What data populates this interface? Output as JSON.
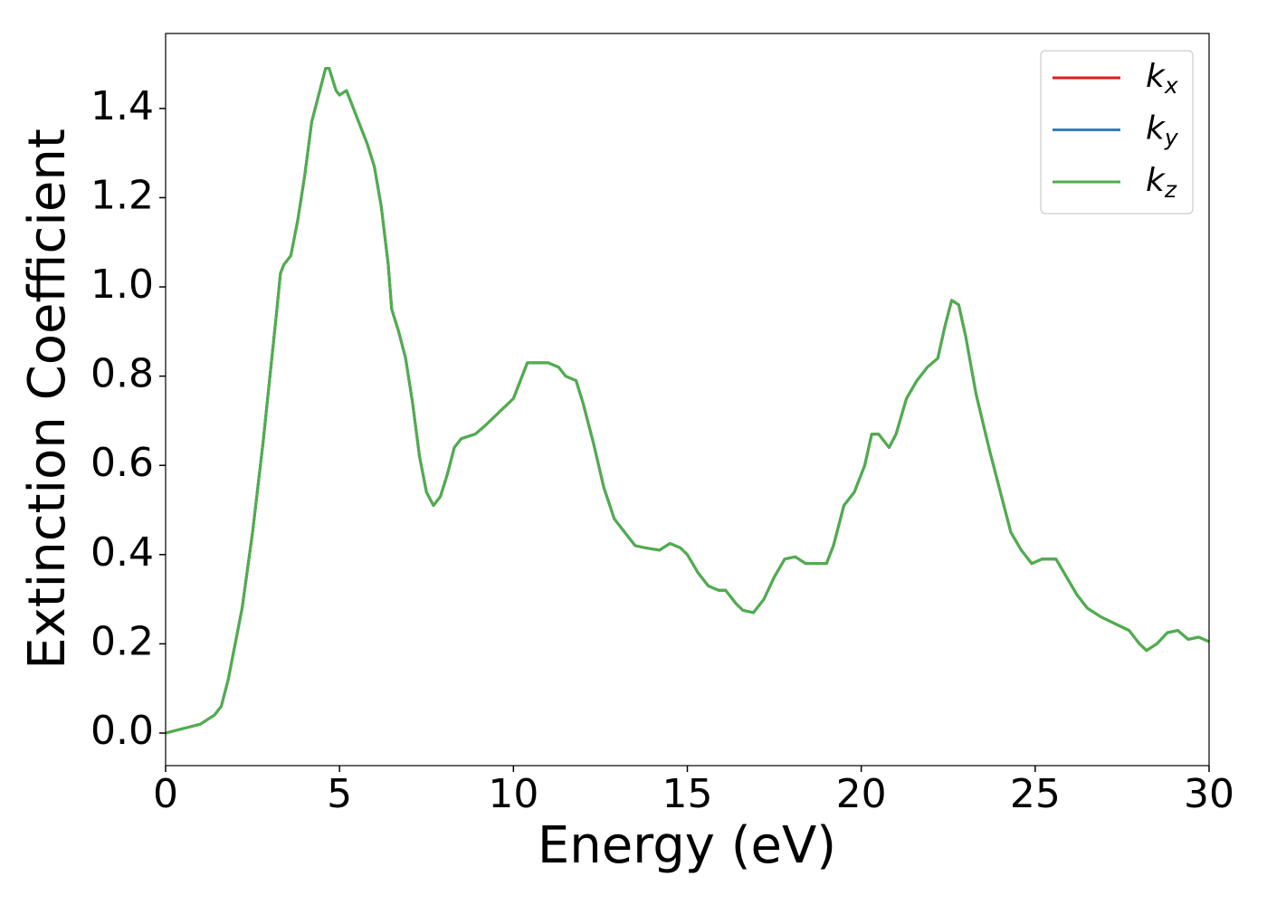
{
  "chart_data": {
    "type": "line",
    "xlabel": "Energy (eV)",
    "ylabel": "Extinction Coefficient",
    "xlim": [
      0,
      30
    ],
    "ylim": [
      -0.073,
      1.568
    ],
    "xticks": [
      0,
      5,
      10,
      15,
      20,
      25,
      30
    ],
    "yticks": [
      {
        "value": 0,
        "label": "0.0"
      },
      0.2,
      0.4,
      0.6,
      0.8,
      {
        "value": 1,
        "label": "1.0"
      },
      1.2,
      1.4
    ],
    "legend": "upper right",
    "x": [
      0,
      0.5,
      1.0,
      1.4,
      1.6,
      1.8,
      2.0,
      2.2,
      2.5,
      2.8,
      3.0,
      3.2,
      3.3,
      3.4,
      3.6,
      3.8,
      4.0,
      4.2,
      4.4,
      4.6,
      4.7,
      4.9,
      5.0,
      5.2,
      5.4,
      5.6,
      5.8,
      6.0,
      6.2,
      6.4,
      6.5,
      6.7,
      6.9,
      7.1,
      7.3,
      7.5,
      7.7,
      7.9,
      8.1,
      8.3,
      8.5,
      8.9,
      9.2,
      9.6,
      10.0,
      10.2,
      10.4,
      10.6,
      11.0,
      11.3,
      11.5,
      11.8,
      12.0,
      12.3,
      12.6,
      12.9,
      13.2,
      13.5,
      13.8,
      14.2,
      14.5,
      14.8,
      15.0,
      15.3,
      15.6,
      15.9,
      16.1,
      16.4,
      16.6,
      16.9,
      17.2,
      17.5,
      17.8,
      18.1,
      18.4,
      18.7,
      19.0,
      19.2,
      19.5,
      19.8,
      20.1,
      20.3,
      20.5,
      20.8,
      21.0,
      21.3,
      21.6,
      21.9,
      22.2,
      22.4,
      22.6,
      22.8,
      23.0,
      23.3,
      23.7,
      24.0,
      24.3,
      24.6,
      24.9,
      25.2,
      25.6,
      25.9,
      26.2,
      26.5,
      26.9,
      27.3,
      27.7,
      28.0,
      28.2,
      28.5,
      28.8,
      29.1,
      29.4,
      29.7,
      30.0
    ],
    "series": [
      {
        "name": "kx",
        "color": "#e41a1c",
        "values": [
          0.0,
          0.01,
          0.02,
          0.04,
          0.06,
          0.12,
          0.2,
          0.28,
          0.45,
          0.65,
          0.8,
          0.95,
          1.03,
          1.05,
          1.07,
          1.15,
          1.25,
          1.37,
          1.43,
          1.49,
          1.49,
          1.44,
          1.43,
          1.44,
          1.4,
          1.36,
          1.32,
          1.27,
          1.18,
          1.05,
          0.95,
          0.9,
          0.84,
          0.74,
          0.62,
          0.54,
          0.51,
          0.53,
          0.58,
          0.64,
          0.66,
          0.67,
          0.69,
          0.72,
          0.75,
          0.79,
          0.83,
          0.83,
          0.83,
          0.82,
          0.8,
          0.79,
          0.74,
          0.65,
          0.55,
          0.48,
          0.45,
          0.42,
          0.415,
          0.41,
          0.425,
          0.415,
          0.4,
          0.36,
          0.33,
          0.32,
          0.32,
          0.29,
          0.275,
          0.27,
          0.3,
          0.35,
          0.39,
          0.395,
          0.38,
          0.38,
          0.38,
          0.42,
          0.51,
          0.54,
          0.6,
          0.67,
          0.67,
          0.64,
          0.67,
          0.75,
          0.79,
          0.82,
          0.84,
          0.91,
          0.97,
          0.96,
          0.89,
          0.76,
          0.63,
          0.54,
          0.45,
          0.41,
          0.38,
          0.39,
          0.39,
          0.35,
          0.31,
          0.28,
          0.26,
          0.245,
          0.23,
          0.2,
          0.185,
          0.2,
          0.225,
          0.23,
          0.21,
          0.215,
          0.205
        ]
      },
      {
        "name": "ky",
        "color": "#377eb8",
        "values": [
          0.0,
          0.01,
          0.02,
          0.04,
          0.06,
          0.12,
          0.2,
          0.28,
          0.45,
          0.65,
          0.8,
          0.95,
          1.03,
          1.05,
          1.07,
          1.15,
          1.25,
          1.37,
          1.43,
          1.49,
          1.49,
          1.44,
          1.43,
          1.44,
          1.4,
          1.36,
          1.32,
          1.27,
          1.18,
          1.05,
          0.95,
          0.9,
          0.84,
          0.74,
          0.62,
          0.54,
          0.51,
          0.53,
          0.58,
          0.64,
          0.66,
          0.67,
          0.69,
          0.72,
          0.75,
          0.79,
          0.83,
          0.83,
          0.83,
          0.82,
          0.8,
          0.79,
          0.74,
          0.65,
          0.55,
          0.48,
          0.45,
          0.42,
          0.415,
          0.41,
          0.425,
          0.415,
          0.4,
          0.36,
          0.33,
          0.32,
          0.32,
          0.29,
          0.275,
          0.27,
          0.3,
          0.35,
          0.39,
          0.395,
          0.38,
          0.38,
          0.38,
          0.42,
          0.51,
          0.54,
          0.6,
          0.67,
          0.67,
          0.64,
          0.67,
          0.75,
          0.79,
          0.82,
          0.84,
          0.91,
          0.97,
          0.96,
          0.89,
          0.76,
          0.63,
          0.54,
          0.45,
          0.41,
          0.38,
          0.39,
          0.39,
          0.35,
          0.31,
          0.28,
          0.26,
          0.245,
          0.23,
          0.2,
          0.185,
          0.2,
          0.225,
          0.23,
          0.21,
          0.215,
          0.205
        ]
      },
      {
        "name": "kz",
        "color": "#4daf4a",
        "values": [
          0.0,
          0.01,
          0.02,
          0.04,
          0.06,
          0.12,
          0.2,
          0.28,
          0.45,
          0.65,
          0.8,
          0.95,
          1.03,
          1.05,
          1.07,
          1.15,
          1.25,
          1.37,
          1.43,
          1.49,
          1.49,
          1.44,
          1.43,
          1.44,
          1.4,
          1.36,
          1.32,
          1.27,
          1.18,
          1.05,
          0.95,
          0.9,
          0.84,
          0.74,
          0.62,
          0.54,
          0.51,
          0.53,
          0.58,
          0.64,
          0.66,
          0.67,
          0.69,
          0.72,
          0.75,
          0.79,
          0.83,
          0.83,
          0.83,
          0.82,
          0.8,
          0.79,
          0.74,
          0.65,
          0.55,
          0.48,
          0.45,
          0.42,
          0.415,
          0.41,
          0.425,
          0.415,
          0.4,
          0.36,
          0.33,
          0.32,
          0.32,
          0.29,
          0.275,
          0.27,
          0.3,
          0.35,
          0.39,
          0.395,
          0.38,
          0.38,
          0.38,
          0.42,
          0.51,
          0.54,
          0.6,
          0.67,
          0.67,
          0.64,
          0.67,
          0.75,
          0.79,
          0.82,
          0.84,
          0.91,
          0.97,
          0.96,
          0.89,
          0.76,
          0.63,
          0.54,
          0.45,
          0.41,
          0.38,
          0.39,
          0.39,
          0.35,
          0.31,
          0.28,
          0.26,
          0.245,
          0.23,
          0.2,
          0.185,
          0.2,
          0.225,
          0.23,
          0.21,
          0.215,
          0.205
        ]
      }
    ]
  }
}
